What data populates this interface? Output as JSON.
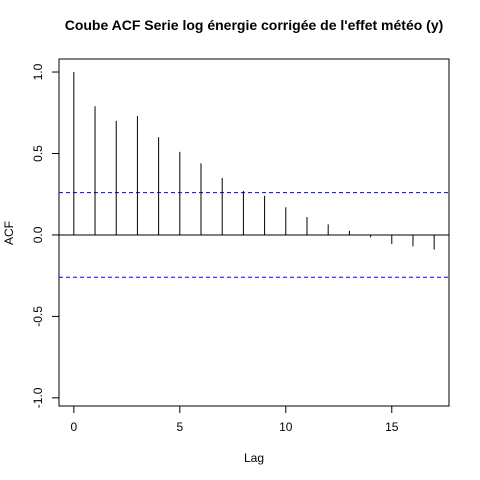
{
  "chart_data": {
    "type": "bar",
    "title": "Coube ACF Serie log énergie corrigée de l'effet météo (y)",
    "xlabel": "Lag",
    "ylabel": "ACF",
    "xlim": [
      -0.7,
      17.7
    ],
    "ylim": [
      -1.05,
      1.08
    ],
    "x_ticks": [
      0,
      5,
      10,
      15
    ],
    "x_tick_labels": [
      "0",
      "5",
      "10",
      "15"
    ],
    "y_ticks": [
      -1.0,
      -0.5,
      0.0,
      0.5,
      1.0
    ],
    "y_tick_labels": [
      "-1.0",
      "-0.5",
      "0.0",
      "0.5",
      "1.0"
    ],
    "x": [
      0,
      1,
      2,
      3,
      4,
      5,
      6,
      7,
      8,
      9,
      10,
      11,
      12,
      13,
      14,
      15,
      16,
      17
    ],
    "values": [
      1.0,
      0.79,
      0.7,
      0.73,
      0.6,
      0.51,
      0.44,
      0.35,
      0.27,
      0.24,
      0.17,
      0.11,
      0.065,
      0.025,
      -0.015,
      -0.055,
      -0.07,
      -0.09
    ],
    "confidence_band": 0.26,
    "colors": {
      "bars": "#000000",
      "confidence": "#0000ff",
      "zero_line": "#000000"
    },
    "grid": false,
    "legend": "none"
  }
}
